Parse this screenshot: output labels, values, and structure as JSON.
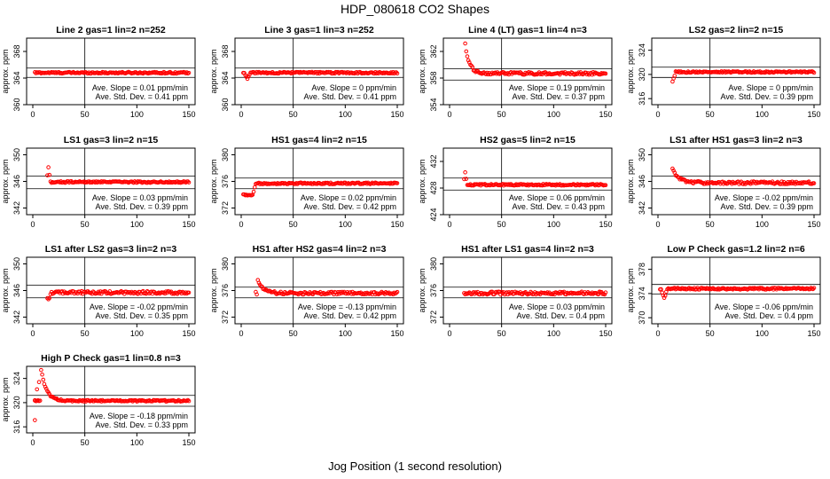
{
  "page": {
    "title": "HDP_080618  CO2 Shapes",
    "xlabel": "Jog Position (1 second resolution)"
  },
  "colors": {
    "points": "#ff0000",
    "axes": "#000000"
  },
  "chart_data": [
    {
      "type": "scatter",
      "title": "Line 2 gas=1 lin=2 n=252",
      "ylabel": "approx. ppm",
      "xlim": [
        0,
        150
      ],
      "ylim": [
        360,
        370
      ],
      "xticks": [
        0,
        50,
        100,
        150
      ],
      "yticks": [
        360,
        364,
        368
      ],
      "vline": 50,
      "hlines": [
        365.5,
        364.1
      ],
      "x_range": [
        2,
        150
      ],
      "profile": {
        "type": "flat",
        "level": 364.8,
        "noise": 0.12
      },
      "annotations": [
        "Ave. Slope = 0.01  ppm/min",
        "Ave. Std. Dev. = 0.41  ppm"
      ]
    },
    {
      "type": "scatter",
      "title": "Line 3 gas=1 lin=3 n=252",
      "ylabel": "approx. ppm",
      "xlim": [
        0,
        150
      ],
      "ylim": [
        360,
        370
      ],
      "xticks": [
        0,
        50,
        100,
        150
      ],
      "yticks": [
        360,
        364,
        368
      ],
      "vline": 50,
      "hlines": [
        365.5,
        364.1
      ],
      "x_range": [
        2,
        150
      ],
      "profile": {
        "type": "dip",
        "level": 364.8,
        "noise": 0.12,
        "dip_x": 6,
        "dip_amount": 0.9
      },
      "annotations": [
        "Ave. Slope = 0  ppm/min",
        "Ave. Std. Dev. = 0.41  ppm"
      ]
    },
    {
      "type": "scatter",
      "title": "Line 4 (LT) gas=1 lin=4 n=3",
      "ylabel": "approx. ppm",
      "xlim": [
        0,
        150
      ],
      "ylim": [
        354,
        364
      ],
      "xticks": [
        0,
        50,
        100,
        150
      ],
      "yticks": [
        354,
        358,
        362
      ],
      "vline": 50,
      "hlines": [
        359.4,
        357.7
      ],
      "x_range": [
        15,
        150
      ],
      "profile": {
        "type": "decay",
        "level": 358.7,
        "noise": 0.2,
        "start": 363,
        "tau": 4,
        "x0": 15
      },
      "annotations": [
        "Ave. Slope = 0.19  ppm/min",
        "Ave. Std. Dev. = 0.37  ppm"
      ]
    },
    {
      "type": "scatter",
      "title": "LS2 gas=2 lin=2 n=15",
      "ylabel": "approx. ppm",
      "xlim": [
        0,
        150
      ],
      "ylim": [
        315,
        326
      ],
      "xticks": [
        0,
        50,
        100,
        150
      ],
      "yticks": [
        316,
        320,
        324
      ],
      "vline": 50,
      "hlines": [
        321.2,
        319.5
      ],
      "x_range": [
        14,
        150
      ],
      "profile": {
        "type": "dip",
        "level": 320.4,
        "noise": 0.12,
        "dip_x": 14,
        "dip_amount": 1.6
      },
      "annotations": [
        "Ave. Slope = 0  ppm/min",
        "Ave. Std. Dev. = 0.39  ppm"
      ]
    },
    {
      "type": "scatter",
      "title": "LS1 gas=3 lin=2 n=15",
      "ylabel": "approx. ppm",
      "xlim": [
        0,
        150
      ],
      "ylim": [
        341,
        351
      ],
      "xticks": [
        0,
        50,
        100,
        150
      ],
      "yticks": [
        342,
        346,
        350
      ],
      "vline": 50,
      "hlines": [
        346.8,
        344.9
      ],
      "x_range": [
        14,
        150
      ],
      "profile": {
        "type": "spike",
        "level": 345.9,
        "noise": 0.12,
        "spike_x": 15,
        "spike_amount": 2.2
      },
      "annotations": [
        "Ave. Slope = 0.03  ppm/min",
        "Ave. Std. Dev. = 0.39  ppm"
      ]
    },
    {
      "type": "scatter",
      "title": "HS1 gas=4 lin=2 n=15",
      "ylabel": "approx. ppm",
      "xlim": [
        0,
        150
      ],
      "ylim": [
        371,
        381
      ],
      "xticks": [
        0,
        50,
        100,
        150
      ],
      "yticks": [
        372,
        376,
        380
      ],
      "vline": 50,
      "hlines": [
        376.5,
        374.9
      ],
      "x_range": [
        2,
        150
      ],
      "profile": {
        "type": "low_start",
        "level": 375.7,
        "noise": 0.12,
        "low_level": 374,
        "low_end": 14
      },
      "annotations": [
        "Ave. Slope = 0.02  ppm/min",
        "Ave. Std. Dev. = 0.42  ppm"
      ]
    },
    {
      "type": "scatter",
      "title": "HS2 gas=5 lin=2 n=15",
      "ylabel": "approx. ppm",
      "xlim": [
        0,
        150
      ],
      "ylim": [
        424,
        434
      ],
      "xticks": [
        0,
        50,
        100,
        150
      ],
      "yticks": [
        424,
        428,
        432
      ],
      "vline": 50,
      "hlines": [
        429.5,
        427.7
      ],
      "x_range": [
        14,
        150
      ],
      "profile": {
        "type": "spike",
        "level": 428.5,
        "noise": 0.12,
        "spike_x": 15,
        "spike_amount": 1.8
      },
      "annotations": [
        "Ave. Slope = 0.06  ppm/min",
        "Ave. Std. Dev. = 0.43  ppm"
      ]
    },
    {
      "type": "scatter",
      "title": "LS1 after HS1 gas=3 lin=2 n=3",
      "ylabel": "approx. ppm",
      "xlim": [
        0,
        150
      ],
      "ylim": [
        341,
        351
      ],
      "xticks": [
        0,
        50,
        100,
        150
      ],
      "yticks": [
        342,
        346,
        350
      ],
      "vline": 50,
      "hlines": [
        346.8,
        344.9
      ],
      "x_range": [
        14,
        150
      ],
      "profile": {
        "type": "decay",
        "level": 345.8,
        "noise": 0.2,
        "start": 347.8,
        "tau": 6,
        "x0": 14
      },
      "annotations": [
        "Ave. Slope = -0.02  ppm/min",
        "Ave. Std. Dev. = 0.39  ppm"
      ]
    },
    {
      "type": "scatter",
      "title": "LS1 after LS2 gas=3 lin=2 n=3",
      "ylabel": "approx. ppm",
      "xlim": [
        0,
        150
      ],
      "ylim": [
        341,
        351
      ],
      "xticks": [
        0,
        50,
        100,
        150
      ],
      "yticks": [
        342,
        346,
        350
      ],
      "vline": 50,
      "hlines": [
        346.8,
        344.9
      ],
      "x_range": [
        14,
        150
      ],
      "profile": {
        "type": "dip",
        "level": 345.7,
        "noise": 0.22,
        "dip_x": 15,
        "dip_amount": 1.2
      },
      "annotations": [
        "Ave. Slope = -0.02  ppm/min",
        "Ave. Std. Dev. = 0.35  ppm"
      ]
    },
    {
      "type": "scatter",
      "title": "HS1 after HS2 gas=4 lin=2 n=3",
      "ylabel": "approx. ppm",
      "xlim": [
        0,
        150
      ],
      "ylim": [
        371,
        381
      ],
      "xticks": [
        0,
        50,
        100,
        150
      ],
      "yticks": [
        372,
        376,
        380
      ],
      "vline": 50,
      "hlines": [
        376.5,
        374.9
      ],
      "x_range": [
        14,
        150
      ],
      "profile": {
        "type": "decay",
        "level": 375.6,
        "noise": 0.2,
        "start": 377.5,
        "tau": 5,
        "x0": 16
      },
      "annotations": [
        "Ave. Slope = -0.13  ppm/min",
        "Ave. Std. Dev. = 0.42  ppm"
      ]
    },
    {
      "type": "scatter",
      "title": "HS1 after LS1 gas=4 lin=2 n=3",
      "ylabel": "approx. ppm",
      "xlim": [
        0,
        150
      ],
      "ylim": [
        371,
        381
      ],
      "xticks": [
        0,
        50,
        100,
        150
      ],
      "yticks": [
        372,
        376,
        380
      ],
      "vline": 50,
      "hlines": [
        376.5,
        374.9
      ],
      "x_range": [
        14,
        150
      ],
      "profile": {
        "type": "flat",
        "level": 375.6,
        "noise": 0.22
      },
      "annotations": [
        "Ave. Slope = 0.03  ppm/min",
        "Ave. Std. Dev. = 0.4  ppm"
      ]
    },
    {
      "type": "scatter",
      "title": "Low P Check gas=1.2 lin=2 n=6",
      "ylabel": "approx. ppm",
      "xlim": [
        0,
        150
      ],
      "ylim": [
        369,
        380
      ],
      "xticks": [
        0,
        50,
        100,
        150
      ],
      "yticks": [
        370,
        374,
        378
      ],
      "vline": 50,
      "hlines": [
        375.5,
        373.9
      ],
      "x_range": [
        2,
        150
      ],
      "profile": {
        "type": "dip",
        "level": 374.8,
        "noise": 0.14,
        "dip_x": 6,
        "dip_amount": 1.6
      },
      "annotations": [
        "Ave. Slope = -0.06  ppm/min",
        "Ave. Std. Dev. = 0.4  ppm"
      ]
    },
    {
      "type": "scatter",
      "title": "High P Check gas=1 lin=0.8 n=3",
      "ylabel": "approx. ppm",
      "xlim": [
        0,
        150
      ],
      "ylim": [
        315,
        326
      ],
      "xticks": [
        0,
        50,
        100,
        150
      ],
      "yticks": [
        316,
        320,
        324
      ],
      "vline": 50,
      "hlines": [
        321.2,
        319.4
      ],
      "x_range": [
        2,
        150
      ],
      "profile": {
        "type": "decay",
        "level": 320.3,
        "noise": 0.12,
        "start": 325.5,
        "tau": 5,
        "x0": 8,
        "pre": [
          [
            2,
            320.4
          ],
          [
            2,
            317.1
          ],
          [
            4,
            322.2
          ],
          [
            6,
            323.4
          ]
        ]
      },
      "annotations": [
        "Ave. Slope = -0.18  ppm/min",
        "Ave. Std. Dev. = 0.33  ppm"
      ]
    }
  ]
}
